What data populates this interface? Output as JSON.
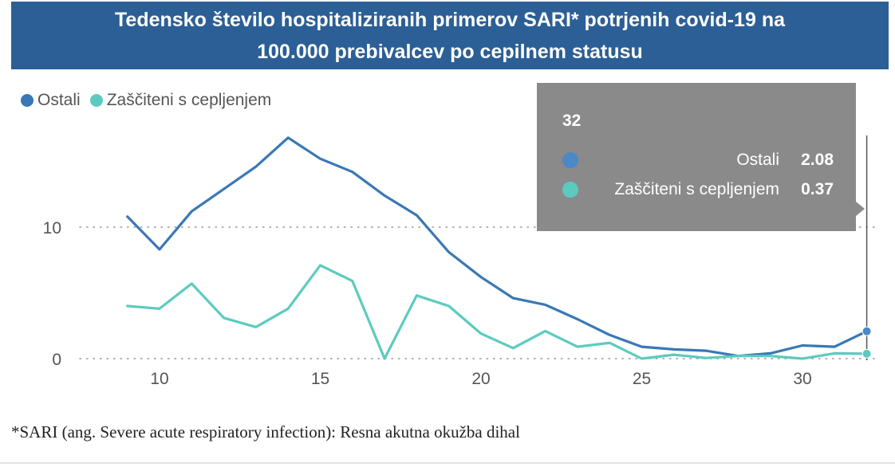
{
  "title": {
    "line1": "Tedensko število hospitaliziranih primerov SARI* potrjenih covid-19 na",
    "line2": "100.000 prebivalcev po cepilnem statusu"
  },
  "legend": [
    {
      "label": "Ostali",
      "color": "#3a78b5"
    },
    {
      "label": "Zaščiteni s cepljenjem",
      "color": "#5ccbbf"
    }
  ],
  "tooltip": {
    "title": "32",
    "rows": [
      {
        "label": "Ostali",
        "value": "2.08",
        "color": "#4a88c7"
      },
      {
        "label": "Zaščiteni s cepljenjem",
        "value": "0.37",
        "color": "#5ccbbf"
      }
    ]
  },
  "footnote": "*SARI (ang. Severe acute respiratory infection): Resna akutna okužba dihal",
  "chart_data": {
    "type": "line",
    "title": "Tedensko število hospitaliziranih primerov SARI* potrjenih covid-19 na 100.000 prebivalcev po cepilnem statusu",
    "xlabel": "",
    "ylabel": "",
    "x": [
      9,
      10,
      11,
      12,
      13,
      14,
      15,
      16,
      17,
      18,
      19,
      20,
      21,
      22,
      23,
      24,
      25,
      26,
      27,
      28,
      29,
      30,
      31,
      32
    ],
    "xlim": [
      8,
      32.3
    ],
    "ylim": [
      0,
      18
    ],
    "xticks": [
      10,
      15,
      20,
      25,
      30
    ],
    "yticks": [
      0,
      10
    ],
    "grid": "horizontal-dotted",
    "series": [
      {
        "name": "Ostali",
        "color": "#3a78b5",
        "values": [
          10.8,
          8.3,
          11.2,
          12.9,
          14.6,
          16.8,
          15.2,
          14.2,
          12.4,
          10.9,
          8.1,
          6.2,
          4.6,
          4.1,
          3.0,
          1.8,
          0.9,
          0.7,
          0.6,
          0.2,
          0.4,
          1.0,
          0.9,
          2.08
        ]
      },
      {
        "name": "Zaščiteni s cepljenjem",
        "color": "#5ccbbf",
        "values": [
          4.0,
          3.8,
          5.7,
          3.1,
          2.4,
          3.8,
          7.1,
          5.9,
          0.0,
          4.8,
          4.0,
          1.9,
          0.8,
          2.1,
          0.9,
          1.2,
          0.0,
          0.3,
          0.05,
          0.2,
          0.2,
          0.0,
          0.4,
          0.37
        ]
      }
    ],
    "hover_x": 32
  }
}
